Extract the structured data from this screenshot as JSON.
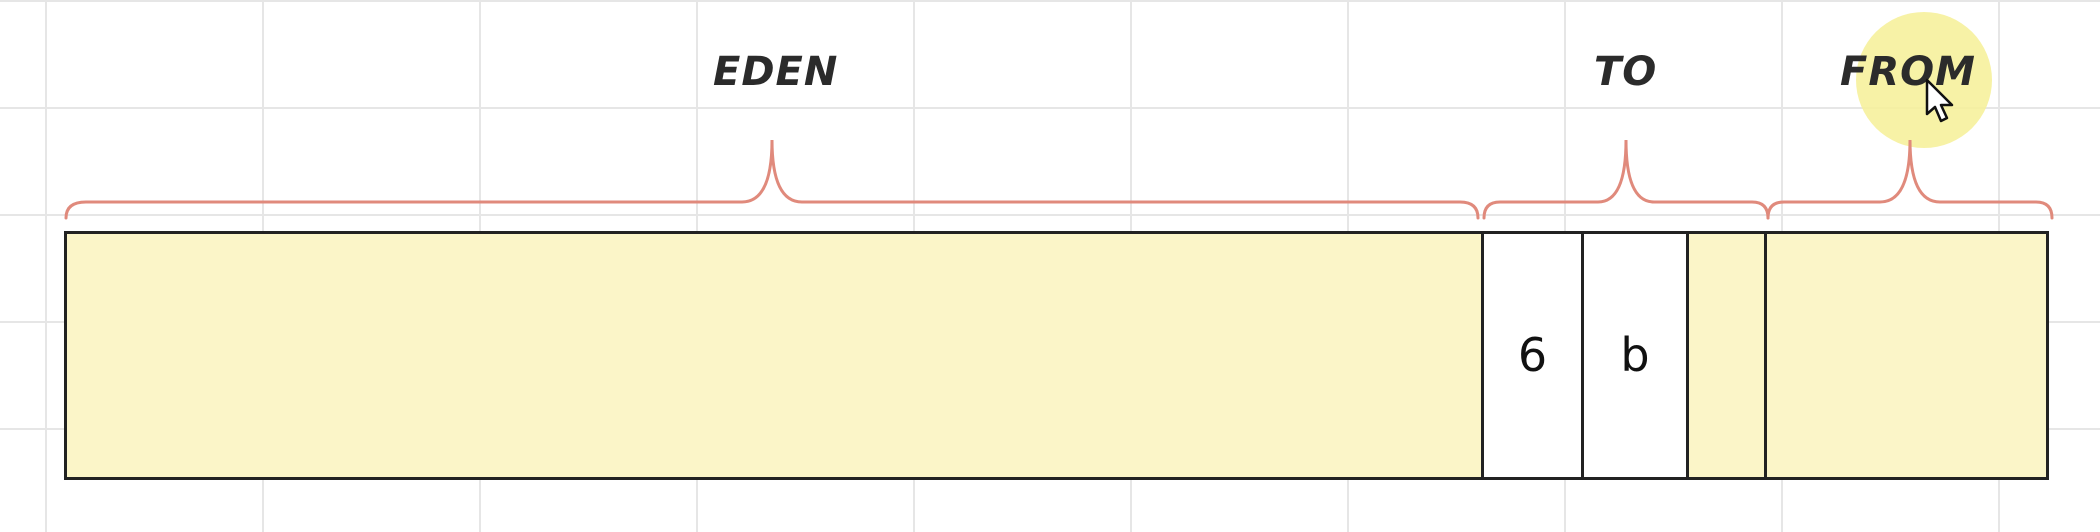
{
  "diagram": {
    "regions": [
      {
        "id": "eden",
        "label": "EDEN"
      },
      {
        "id": "to",
        "label": "TO"
      },
      {
        "id": "from",
        "label": "FROM"
      }
    ],
    "cells": [
      {
        "id": "cell-1",
        "text": "6"
      },
      {
        "id": "cell-2",
        "text": "b"
      }
    ]
  },
  "colors": {
    "fill": "#fbf5c8",
    "cell_fill": "#ffffff",
    "brace": "#e08a7c",
    "grid": "#e6e6e6",
    "highlight": "#f6f096"
  },
  "icons": [
    "mouse-cursor-icon"
  ]
}
